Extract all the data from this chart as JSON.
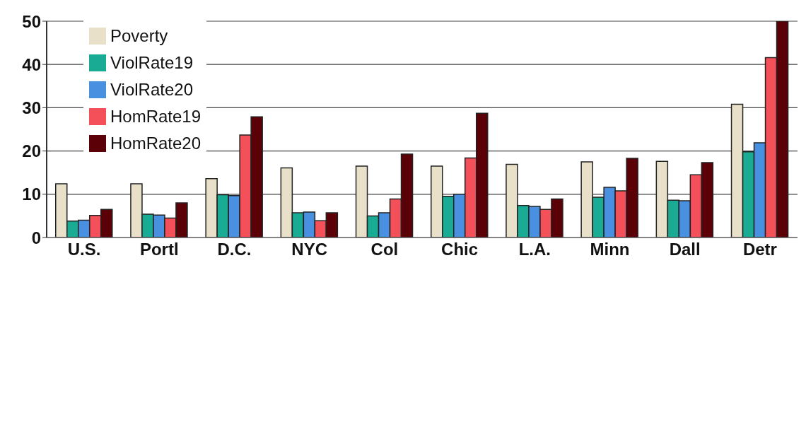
{
  "chart_data": {
    "type": "bar",
    "categories": [
      "U.S.",
      "Portl",
      "D.C.",
      "NYC",
      "Col",
      "Chic",
      "L.A.",
      "Minn",
      "Dall",
      "Detr"
    ],
    "series": [
      {
        "name": "Poverty",
        "color": "#e8e0c8",
        "values": [
          12.4,
          12.4,
          13.6,
          16.1,
          16.5,
          16.5,
          16.9,
          17.5,
          17.6,
          30.8
        ]
      },
      {
        "name": "ViolRate19",
        "color": "#1aab94",
        "values": [
          3.8,
          5.4,
          9.9,
          5.7,
          5.0,
          9.5,
          7.4,
          9.3,
          8.6,
          19.8
        ]
      },
      {
        "name": "ViolRate20",
        "color": "#4a90e0",
        "values": [
          4.0,
          5.2,
          9.7,
          5.9,
          5.7,
          10.0,
          7.2,
          11.6,
          8.5,
          21.9
        ]
      },
      {
        "name": "HomRate19",
        "color": "#f4505a",
        "values": [
          5.1,
          4.5,
          23.7,
          3.9,
          8.9,
          18.4,
          6.5,
          10.8,
          14.5,
          41.6
        ]
      },
      {
        "name": "HomRate20",
        "color": "#5c0008",
        "values": [
          6.5,
          8.0,
          27.9,
          5.7,
          19.3,
          28.7,
          8.9,
          18.3,
          17.3,
          50.0
        ]
      }
    ],
    "ylim": [
      0,
      50
    ],
    "yticks": [
      0,
      10,
      20,
      30,
      40,
      50
    ],
    "grid": "y",
    "legend": "top left"
  }
}
